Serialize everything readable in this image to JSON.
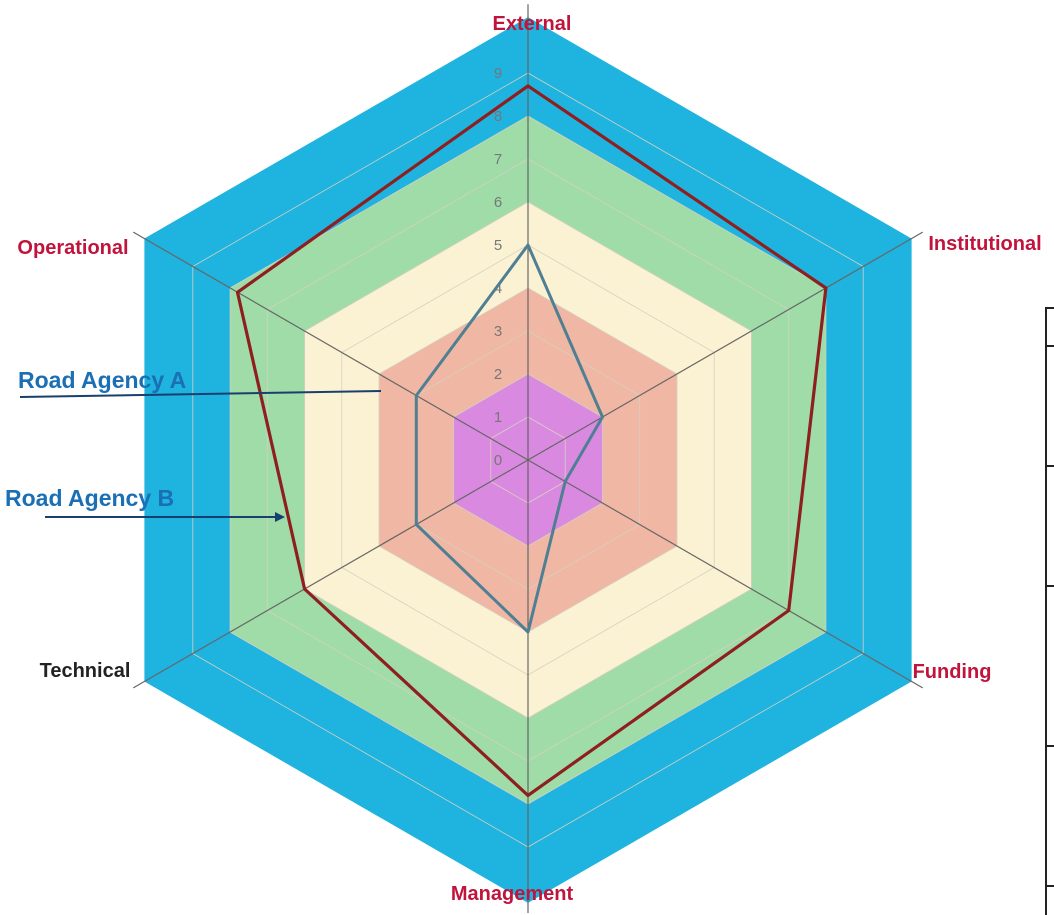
{
  "chart_data": {
    "type": "radar",
    "title": "",
    "axes": [
      "External",
      "Institutional",
      "Funding",
      "Management",
      "Technical",
      "Operational"
    ],
    "axis_colors": [
      "#c0143c",
      "#c0143c",
      "#c0143c",
      "#c0143c",
      "#222222",
      "#c0143c"
    ],
    "scale": {
      "min": 0,
      "max": 9,
      "ticks": [
        "0",
        "1",
        "2",
        "3",
        "4",
        "5",
        "6",
        "7",
        "8",
        "9"
      ]
    },
    "bands": [
      {
        "from": 0,
        "to": 2,
        "color": "#d98ae0"
      },
      {
        "from": 2,
        "to": 4,
        "color": "#f0b7a4"
      },
      {
        "from": 4,
        "to": 6,
        "color": "#fbf2d4"
      },
      {
        "from": 6,
        "to": 8,
        "color": "#9fdca8"
      },
      {
        "from": 8,
        "to": 10,
        "color": "#1fb3e0"
      }
    ],
    "series": [
      {
        "name": "Road Agency A",
        "color": "#4f7f92",
        "values": [
          5,
          2,
          1,
          4,
          3,
          3
        ]
      },
      {
        "name": "Road Agency B",
        "color": "#8f1f1f",
        "values": [
          8.7,
          8,
          7,
          7.8,
          6,
          7.8
        ]
      }
    ],
    "legend": "callouts-left"
  }
}
